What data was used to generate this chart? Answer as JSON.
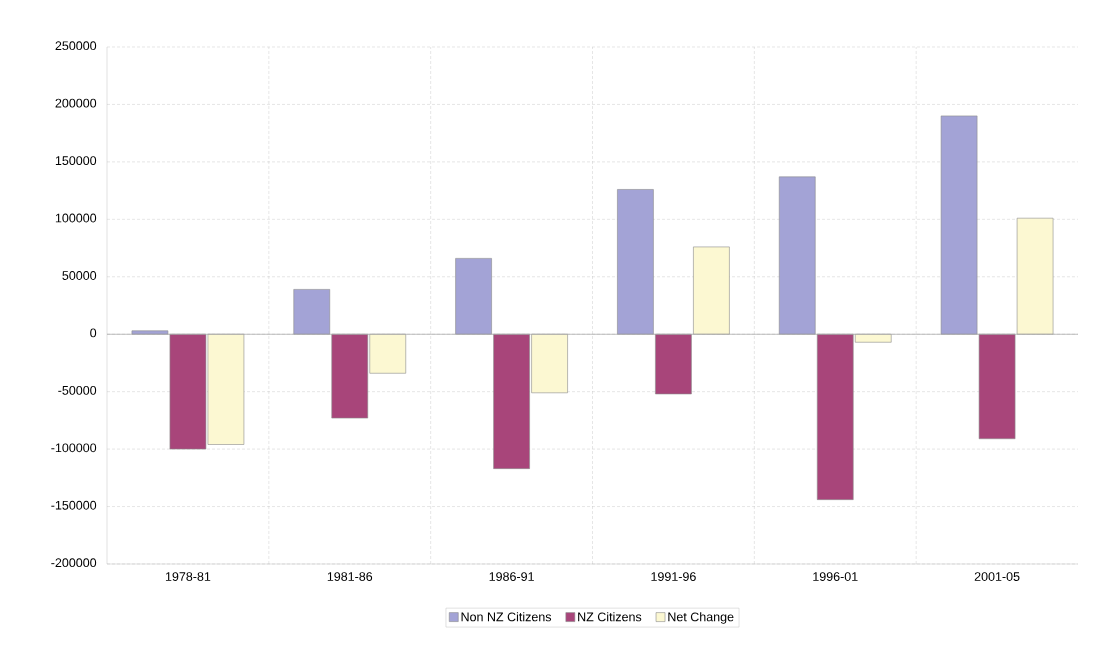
{
  "chart_data": {
    "type": "bar",
    "categories": [
      "1978-81",
      "1981-86",
      "1986-91",
      "1991-96",
      "1996-01",
      "2001-05"
    ],
    "series": [
      {
        "name": "Non NZ Citizens",
        "color": "#a3a3d6",
        "values": [
          3000,
          39000,
          66000,
          126000,
          137000,
          190000
        ]
      },
      {
        "name": "NZ Citizens",
        "color": "#a8457a",
        "values": [
          -100000,
          -73000,
          -117000,
          -52000,
          -144000,
          -91000
        ]
      },
      {
        "name": "Net Change",
        "color": "#fcf8d2",
        "values": [
          -96000,
          -34000,
          -51000,
          76000,
          -7000,
          101000
        ]
      }
    ],
    "ylim": [
      -200000,
      250000
    ],
    "yticks": [
      -200000,
      -150000,
      -100000,
      -50000,
      0,
      50000,
      100000,
      150000,
      200000,
      250000
    ],
    "grid": true,
    "legend": "bottom"
  }
}
